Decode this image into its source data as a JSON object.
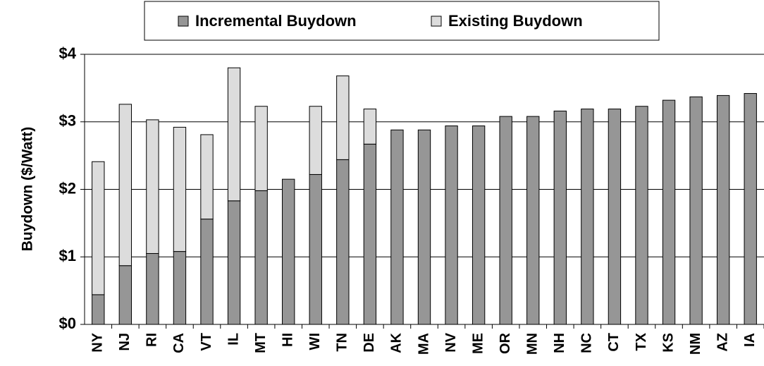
{
  "chart_data": {
    "type": "stacked-bar",
    "y_label": "Buydown ($/Watt)",
    "categories": [
      "NY",
      "NJ",
      "RI",
      "CA",
      "VT",
      "IL",
      "MT",
      "HI",
      "WI",
      "TN",
      "DE",
      "AK",
      "MA",
      "NV",
      "ME",
      "OR",
      "MN",
      "NH",
      "NC",
      "CT",
      "TX",
      "KS",
      "NM",
      "AZ",
      "IA"
    ],
    "series": [
      {
        "name": "Incremental Buydown",
        "color": "#969696",
        "values": [
          0.44,
          0.87,
          1.05,
          1.08,
          1.56,
          1.83,
          1.98,
          2.15,
          2.22,
          2.44,
          2.67,
          2.88,
          2.88,
          2.94,
          2.94,
          3.08,
          3.08,
          3.16,
          3.19,
          3.19,
          3.23,
          3.32,
          3.37,
          3.39,
          3.42
        ]
      },
      {
        "name": "Existing Buydown",
        "color": "#dcdcdc",
        "values": [
          1.97,
          2.39,
          1.98,
          1.84,
          1.25,
          1.97,
          1.25,
          0,
          1.01,
          1.24,
          0.52,
          0,
          0,
          0,
          0,
          0,
          0,
          0,
          0,
          0,
          0,
          0,
          0,
          0,
          0
        ]
      }
    ],
    "ylim": [
      0,
      4
    ],
    "yticks": [
      {
        "value": 0,
        "label": "$0"
      },
      {
        "value": 1,
        "label": "$1"
      },
      {
        "value": 2,
        "label": "$2"
      },
      {
        "value": 3,
        "label": "$3"
      },
      {
        "value": 4,
        "label": "$4"
      }
    ],
    "grid": true,
    "legend": "top"
  }
}
